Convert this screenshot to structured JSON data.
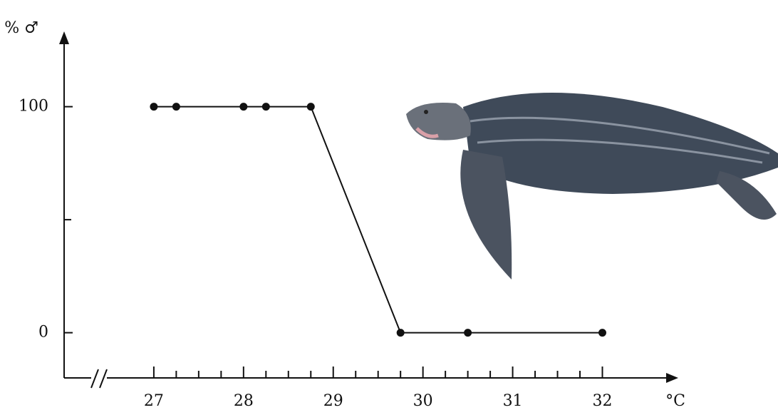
{
  "chart_data": {
    "type": "line",
    "ylabel": "% ♂",
    "xlabel": "°C",
    "x": [
      27,
      27.25,
      28,
      28.25,
      28.75,
      29.75,
      30.5,
      32
    ],
    "values": [
      100,
      100,
      100,
      100,
      100,
      0,
      0,
      0
    ],
    "color": "#111111",
    "xlim": [
      26,
      32.83
    ],
    "ylim": [
      -20,
      133
    ],
    "xticks": [
      27,
      28,
      29,
      30,
      31,
      32
    ],
    "xminorticks": [
      27.25,
      27.5,
      27.75,
      28.25,
      28.5,
      28.75,
      29.25,
      29.5,
      29.75,
      30.25,
      30.5,
      30.75,
      31.25,
      31.5,
      31.75
    ],
    "yticks": [
      0,
      100
    ],
    "yminorticks": [
      50
    ],
    "grid": false
  }
}
